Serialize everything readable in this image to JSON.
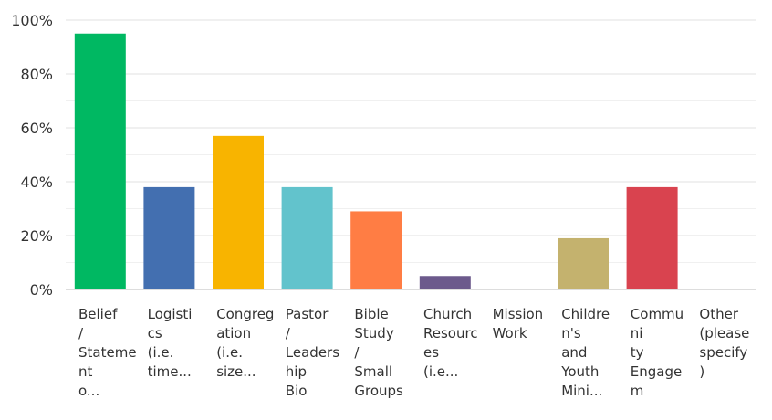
{
  "chart_data": {
    "type": "bar",
    "categories": [
      "Belief\n/\nStateme\nnt\no...",
      "Logisti\ncs\n(i.e.\ntime...",
      "Congreg\nation\n(i.e.\nsize...",
      "Pastor\n/\nLeaders\nhip\nBio",
      "Bible\nStudy\n/\nSmall\nGroups",
      "Church\nResourc\nes\n(i.e...",
      "Mission\nWork",
      "Childre\nn's\nand\nYouth\nMini...",
      "Communi\nty\nEngagem\nent\n...",
      "Other\n(please\nspecify\n)"
    ],
    "values": [
      95,
      38,
      57,
      38,
      29,
      5,
      0,
      19,
      38,
      0
    ],
    "colors": [
      "#00b862",
      "#436fb0",
      "#f8b400",
      "#62c3cc",
      "#ff7d44",
      "#6c5a8c",
      "#c9a227",
      "#c4b26e",
      "#d9434f",
      "#999999"
    ],
    "ylim": [
      0,
      100
    ],
    "yticks": [
      "0%",
      "20%",
      "40%",
      "60%",
      "80%",
      "100%"
    ],
    "grid": true
  }
}
